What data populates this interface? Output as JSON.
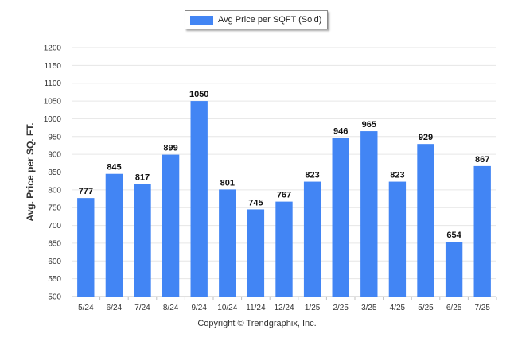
{
  "chart_data": {
    "type": "bar",
    "title": "",
    "ylabel": "Avg. Price per SQ. FT.",
    "xlabel": "",
    "ylim": [
      500,
      1200
    ],
    "yticks": [
      500,
      550,
      600,
      650,
      700,
      750,
      800,
      850,
      900,
      950,
      1000,
      1050,
      1100,
      1150,
      1200
    ],
    "categories": [
      "5/24",
      "6/24",
      "7/24",
      "8/24",
      "9/24",
      "10/24",
      "11/24",
      "12/24",
      "1/25",
      "2/25",
      "3/25",
      "4/25",
      "5/25",
      "6/25",
      "7/25"
    ],
    "series": [
      {
        "name": "Avg Price per SQFT (Sold)",
        "values": [
          777,
          845,
          817,
          899,
          1050,
          801,
          745,
          767,
          823,
          946,
          965,
          823,
          929,
          654,
          867
        ],
        "color": "#4285f4"
      }
    ],
    "data_labels": true,
    "grid": true,
    "legend": "top-center"
  },
  "footer": {
    "copyright": "Copyright © Trendgraphix, Inc."
  },
  "colors": {
    "bar": "#4285f4",
    "grid": "#e6e6e6",
    "axis": "#c0c0c0",
    "text": "#333333"
  }
}
